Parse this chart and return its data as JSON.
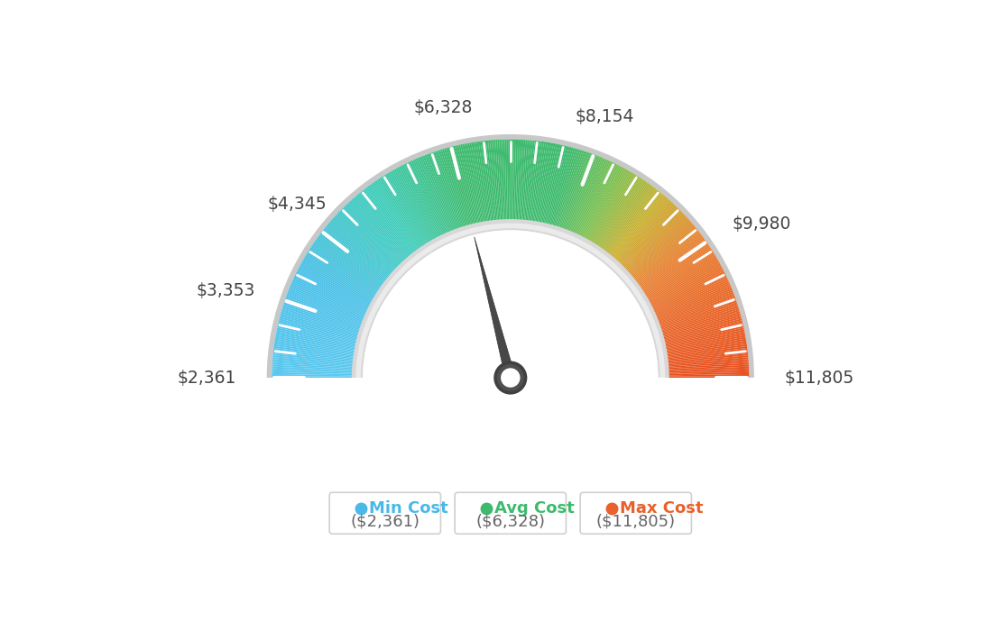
{
  "min_val": 2361,
  "max_val": 11805,
  "avg_val": 6328,
  "tick_values": [
    2361,
    3353,
    4345,
    6328,
    8154,
    9980,
    11805
  ],
  "tick_labels": [
    "$2,361",
    "$3,353",
    "$4,345",
    "$6,328",
    "$8,154",
    "$9,980",
    "$11,805"
  ],
  "legend_labels": [
    "Min Cost",
    "Avg Cost",
    "Max Cost"
  ],
  "legend_values": [
    "($2,361)",
    "($6,328)",
    "($11,805)"
  ],
  "legend_colors": [
    "#4ab8e8",
    "#3dba6e",
    "#e8612c"
  ],
  "background_color": "#ffffff",
  "needle_value": 6328,
  "color_segments": [
    [
      0.0,
      "#5ac8f0"
    ],
    [
      0.2,
      "#4ab8e0"
    ],
    [
      0.35,
      "#3dcbaa"
    ],
    [
      0.45,
      "#3dba6e"
    ],
    [
      0.5,
      "#3dba6e"
    ],
    [
      0.6,
      "#6ec45a"
    ],
    [
      0.68,
      "#b8c83d"
    ],
    [
      0.75,
      "#e8a03d"
    ],
    [
      0.85,
      "#e87a2c"
    ],
    [
      1.0,
      "#e8612c"
    ]
  ]
}
